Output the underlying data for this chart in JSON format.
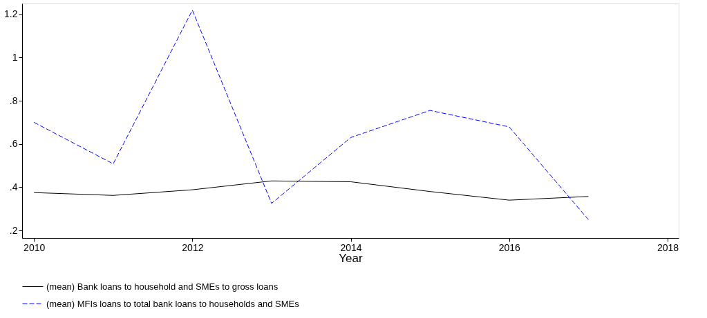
{
  "chart_data": {
    "type": "line",
    "xlabel": "Year",
    "x": [
      2010,
      2011,
      2012,
      2013,
      2014,
      2015,
      2016,
      2017
    ],
    "series": [
      {
        "name": "(mean)  Bank loans to household and SMEs to gross loans",
        "color": "#000000",
        "line_style": "solid",
        "values": [
          0.375,
          0.362,
          0.388,
          0.429,
          0.425,
          0.38,
          0.34,
          0.357
        ]
      },
      {
        "name": "(mean) MFIs loans to total bank loans to households and SMEs",
        "color": "#0000ff",
        "line_style": "dashed",
        "values": [
          0.7,
          0.508,
          1.219,
          0.325,
          0.63,
          0.755,
          0.679,
          0.25
        ]
      }
    ],
    "xlim": [
      2009.85,
      2018.14
    ],
    "xticks": [
      2010,
      2012,
      2014,
      2016,
      2018
    ],
    "ylim": [
      0.165,
      1.25
    ],
    "yticks": [
      {
        "value": 0.2,
        "label": ".2"
      },
      {
        "value": 0.4,
        "label": ".4"
      },
      {
        "value": 0.6,
        "label": ".6"
      },
      {
        "value": 0.8,
        "label": ".8"
      },
      1,
      1.2
    ],
    "grid": false,
    "legend": "bottom",
    "marker": "none"
  }
}
